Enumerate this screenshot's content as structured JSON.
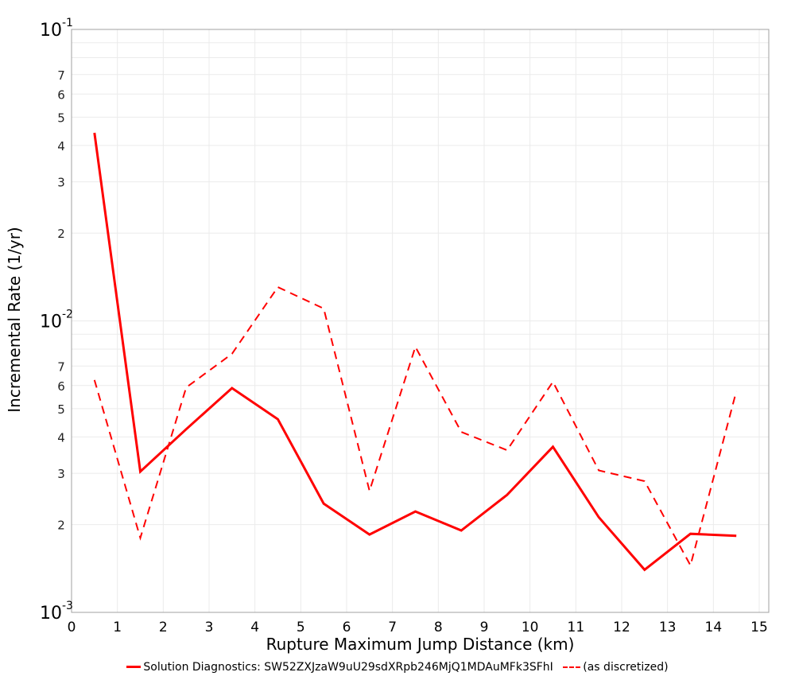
{
  "chart_data": {
    "type": "line",
    "title": "",
    "xlabel": "Rupture Maximum Jump Distance (km)",
    "ylabel": "Incremental Rate (1/yr)",
    "xlim": [
      0,
      15.2
    ],
    "ylim": [
      0.001,
      0.1
    ],
    "yscale": "log",
    "grid": true,
    "legend_position": "bottom",
    "x_ticks": [
      "0",
      "1",
      "2",
      "3",
      "4",
      "5",
      "6",
      "7",
      "8",
      "9",
      "10",
      "11",
      "12",
      "13",
      "14",
      "15"
    ],
    "y_major_ticks": [
      "10^-3",
      "10^-2",
      "10^-1"
    ],
    "y_minor_tick_labels": [
      "2",
      "3",
      "4",
      "5",
      "6",
      "7"
    ],
    "x": [
      0.5,
      1.5,
      2.5,
      3.5,
      4.5,
      5.5,
      6.5,
      7.5,
      8.5,
      9.5,
      10.5,
      11.5,
      12.5,
      13.5,
      14.5
    ],
    "series": [
      {
        "name": "Solution Diagnostics: SW52ZXJzaW9uU29sdXRpb246MjQ1MDAuMFk3SFhI",
        "style": "solid",
        "color": "#ff0000",
        "values": [
          0.0442,
          0.00304,
          0.00425,
          0.00588,
          0.0046,
          0.00236,
          0.00185,
          0.00222,
          0.00191,
          0.00253,
          0.0037,
          0.00212,
          0.0014,
          0.00186,
          0.00183
        ]
      },
      {
        "name": "(as discretized)",
        "style": "dashed",
        "color": "#ff0000",
        "values": [
          0.00627,
          0.0018,
          0.00591,
          0.00771,
          0.01306,
          0.01102,
          0.00261,
          0.00815,
          0.00416,
          0.0036,
          0.00618,
          0.00307,
          0.00282,
          0.00145,
          0.00574
        ]
      }
    ]
  },
  "labels": {
    "xlabel": "Rupture Maximum Jump Distance (km)",
    "ylabel": "Incremental Rate (1/yr)",
    "legend_solid": "Solution Diagnostics: SW52ZXJzaW9uU29sdXRpb246MjQ1MDAuMFk3SFhI",
    "legend_dashed": "(as discretized)"
  }
}
